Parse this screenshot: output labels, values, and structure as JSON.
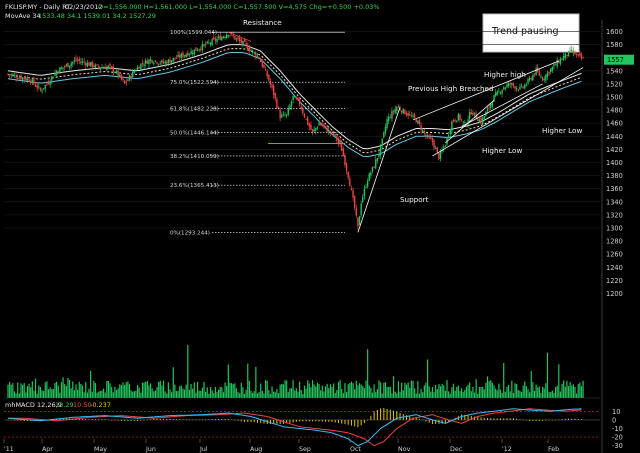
{
  "header": {
    "symbol": "FKLISP.MY - Daily RT",
    "date": "02/23/2012",
    "ohlc": "O=1,556.000  H=1,561.000  L=1,554.000  C=1,557.500  V=4,575  Chg=+0.500  +0.03%",
    "mov_label": "MovAve 34",
    "mov_values": "1533.48   34.1   1539.01   34.2   1527.29"
  },
  "callout": "Trend pausing",
  "annotations": {
    "resistance": "Resistance",
    "support": "Support",
    "prev_high": "Previous High Breached",
    "higher_high": "Higher high",
    "higher_low_1": "Higher Low",
    "higher_low_2": "Higher Low"
  },
  "fib_labels": [
    "100%(1599.044)",
    "75.0%(1522.594)",
    "61.8%(1482.228)",
    "50.0%(1446.144)",
    "38.2%(1410.059)",
    "23.6%(1365.413)",
    "0%(1293.244)"
  ],
  "macd": {
    "label": "mhMACD 12,26,9",
    "v1": "13.29",
    "v2": "10.50",
    "v3": "-0.237"
  },
  "colors": {
    "up": "#22c55e",
    "down": "#ef4444",
    "ma": "#e8e8e8",
    "ma_dash": "#f1e6a0",
    "ma2": "#67c7e6",
    "volume": "#22c55e",
    "macd_hist": "#e5c500"
  },
  "chart_data": {
    "type": "candlestick",
    "x_axis_labels": [
      "'11",
      "Apr",
      "May",
      "Jun",
      "Jul",
      "Aug",
      "Sep",
      "Oct",
      "Nov",
      "Dec",
      "'12",
      "Feb"
    ],
    "y_ticks": [
      1200,
      1220,
      1240,
      1260,
      1280,
      1300,
      1320,
      1340,
      1360,
      1380,
      1400,
      1420,
      1440,
      1460,
      1480,
      1500,
      1520,
      1540,
      1560,
      1580,
      1600
    ],
    "ylim": [
      1190,
      1610
    ],
    "last_price_tag": "1557",
    "macd_ticks": [
      "10",
      "0",
      "-10",
      "-20",
      "-30"
    ],
    "macd_ylim": [
      -35,
      15
    ],
    "close_path": [
      [
        0,
        1535
      ],
      [
        8,
        1530
      ],
      [
        14,
        1526
      ],
      [
        20,
        1510
      ],
      [
        24,
        1520
      ],
      [
        30,
        1540
      ],
      [
        36,
        1548
      ],
      [
        42,
        1556
      ],
      [
        48,
        1552
      ],
      [
        56,
        1545
      ],
      [
        62,
        1546
      ],
      [
        66,
        1540
      ],
      [
        72,
        1520
      ],
      [
        78,
        1540
      ],
      [
        82,
        1550
      ],
      [
        88,
        1557
      ],
      [
        96,
        1552
      ],
      [
        104,
        1560
      ],
      [
        112,
        1568
      ],
      [
        118,
        1575
      ],
      [
        124,
        1582
      ],
      [
        132,
        1592
      ],
      [
        136,
        1598
      ],
      [
        140,
        1590
      ],
      [
        146,
        1580
      ],
      [
        150,
        1572
      ],
      [
        155,
        1560
      ],
      [
        160,
        1532
      ],
      [
        164,
        1505
      ],
      [
        168,
        1470
      ],
      [
        172,
        1472
      ],
      [
        176,
        1500
      ],
      [
        180,
        1490
      ],
      [
        184,
        1465
      ],
      [
        188,
        1445
      ],
      [
        192,
        1460
      ],
      [
        196,
        1452
      ],
      [
        202,
        1440
      ],
      [
        206,
        1420
      ],
      [
        210,
        1380
      ],
      [
        214,
        1330
      ],
      [
        216,
        1300
      ],
      [
        218,
        1340
      ],
      [
        222,
        1375
      ],
      [
        226,
        1395
      ],
      [
        230,
        1422
      ],
      [
        234,
        1465
      ],
      [
        240,
        1485
      ],
      [
        246,
        1475
      ],
      [
        252,
        1465
      ],
      [
        258,
        1440
      ],
      [
        262,
        1432
      ],
      [
        266,
        1408
      ],
      [
        270,
        1428
      ],
      [
        274,
        1462
      ],
      [
        278,
        1470
      ],
      [
        282,
        1458
      ],
      [
        286,
        1478
      ],
      [
        292,
        1462
      ],
      [
        296,
        1480
      ],
      [
        300,
        1500
      ],
      [
        306,
        1515
      ],
      [
        310,
        1520
      ],
      [
        316,
        1512
      ],
      [
        320,
        1520
      ],
      [
        326,
        1540
      ],
      [
        330,
        1528
      ],
      [
        336,
        1545
      ],
      [
        342,
        1560
      ],
      [
        348,
        1570
      ],
      [
        352,
        1562
      ],
      [
        355,
        1557
      ]
    ],
    "ma_path": [
      [
        0,
        1540
      ],
      [
        20,
        1533
      ],
      [
        40,
        1540
      ],
      [
        60,
        1545
      ],
      [
        80,
        1540
      ],
      [
        100,
        1550
      ],
      [
        120,
        1565
      ],
      [
        136,
        1580
      ],
      [
        146,
        1580
      ],
      [
        156,
        1570
      ],
      [
        168,
        1540
      ],
      [
        180,
        1505
      ],
      [
        190,
        1480
      ],
      [
        200,
        1455
      ],
      [
        210,
        1435
      ],
      [
        220,
        1420
      ],
      [
        230,
        1425
      ],
      [
        240,
        1440
      ],
      [
        252,
        1452
      ],
      [
        262,
        1452
      ],
      [
        272,
        1450
      ],
      [
        282,
        1455
      ],
      [
        292,
        1462
      ],
      [
        302,
        1475
      ],
      [
        312,
        1490
      ],
      [
        322,
        1505
      ],
      [
        332,
        1515
      ],
      [
        342,
        1525
      ],
      [
        355,
        1537
      ]
    ],
    "fib_levels": [
      1599.044,
      1522.594,
      1482.228,
      1446.144,
      1410.059,
      1365.413,
      1293.244
    ],
    "macd_path": [
      [
        0,
        2
      ],
      [
        20,
        -1
      ],
      [
        40,
        3
      ],
      [
        60,
        5
      ],
      [
        80,
        2
      ],
      [
        100,
        5
      ],
      [
        120,
        6
      ],
      [
        136,
        8
      ],
      [
        150,
        4
      ],
      [
        160,
        -2
      ],
      [
        170,
        -8
      ],
      [
        180,
        -10
      ],
      [
        190,
        -12
      ],
      [
        200,
        -15
      ],
      [
        210,
        -22
      ],
      [
        216,
        -30
      ],
      [
        222,
        -25
      ],
      [
        230,
        -10
      ],
      [
        240,
        2
      ],
      [
        252,
        6
      ],
      [
        262,
        0
      ],
      [
        270,
        -4
      ],
      [
        280,
        4
      ],
      [
        290,
        8
      ],
      [
        300,
        10
      ],
      [
        312,
        13
      ],
      [
        325,
        11
      ],
      [
        335,
        10
      ],
      [
        345,
        12
      ],
      [
        355,
        13
      ]
    ]
  }
}
